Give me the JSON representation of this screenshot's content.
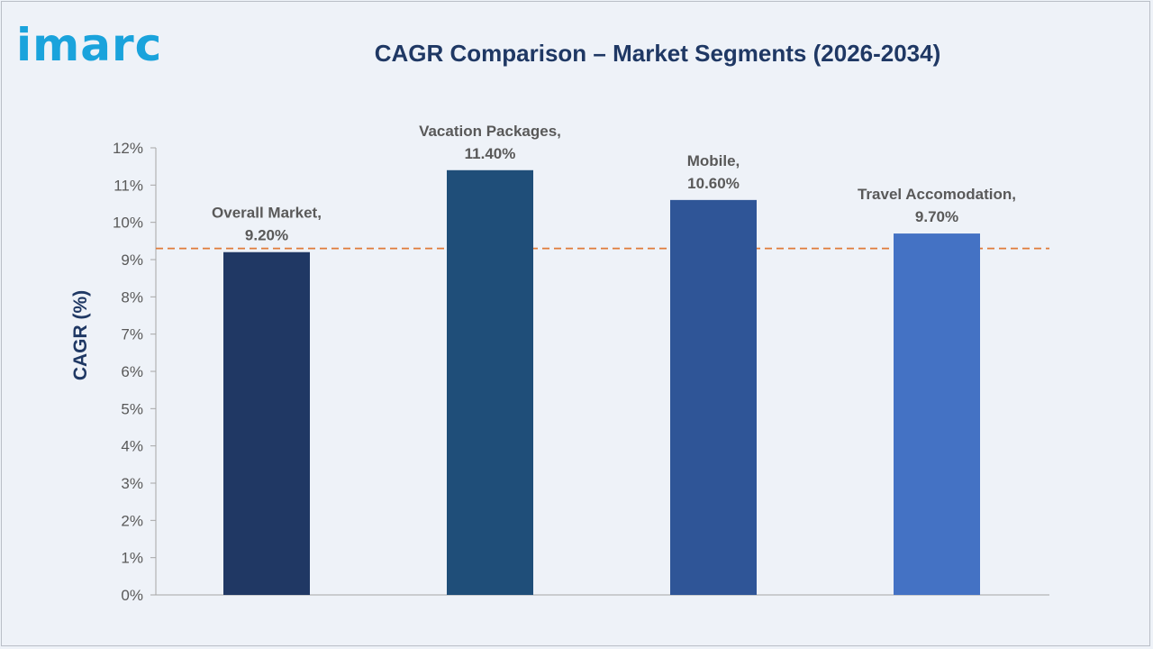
{
  "logo": {
    "text": "imarc",
    "color": "#1aa3dc"
  },
  "chart_data": {
    "type": "bar",
    "title": "CAGR Comparison – Market Segments (2026-2034)",
    "ylabel": "CAGR (%)",
    "xlabel": "",
    "categories": [
      "Overall Market",
      "Vacation Packages",
      "Mobile",
      "Travel Accomodation"
    ],
    "values": [
      9.2,
      11.4,
      10.6,
      9.7
    ],
    "data_labels": [
      [
        "Overall Market,",
        "9.20%"
      ],
      [
        "Vacation Packages,",
        "11.40%"
      ],
      [
        "Mobile,",
        "10.60%"
      ],
      [
        "Travel Accomodation,",
        "9.70%"
      ]
    ],
    "bar_colors": [
      "#203864",
      "#1f4e79",
      "#2f5597",
      "#4472c4"
    ],
    "ylim": [
      0,
      12
    ],
    "yticks": [
      "0%",
      "1%",
      "2%",
      "3%",
      "4%",
      "5%",
      "6%",
      "7%",
      "8%",
      "9%",
      "10%",
      "11%",
      "12%"
    ],
    "reference_line": {
      "value": 9.3,
      "color": "#e07b39",
      "style": "dashed"
    },
    "grid": false,
    "legend": "none"
  }
}
